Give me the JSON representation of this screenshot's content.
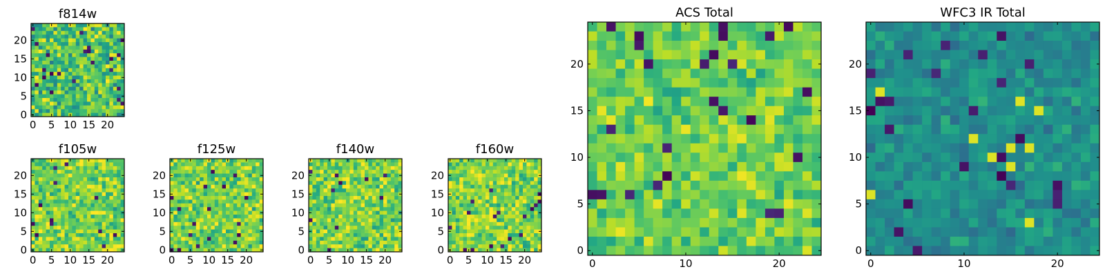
{
  "chart_data": [
    {
      "id": "f814w",
      "type": "heatmap",
      "title": "f814w",
      "colormap": "viridis",
      "grid_size": 25,
      "xlim": [
        0,
        24
      ],
      "ylim": [
        0,
        24
      ],
      "xticks": [
        0,
        5,
        10,
        15,
        20
      ],
      "yticks": [
        0,
        5,
        10,
        15,
        20
      ],
      "grid": false
    },
    {
      "id": "f105w",
      "type": "heatmap",
      "title": "f105w",
      "colormap": "viridis",
      "grid_size": 25,
      "xlim": [
        0,
        24
      ],
      "ylim": [
        0,
        24
      ],
      "xticks": [
        0,
        5,
        10,
        15,
        20
      ],
      "yticks": [
        0,
        5,
        10,
        15,
        20
      ],
      "grid": false
    },
    {
      "id": "f125w",
      "type": "heatmap",
      "title": "f125w",
      "colormap": "viridis",
      "grid_size": 25,
      "xlim": [
        0,
        24
      ],
      "ylim": [
        0,
        24
      ],
      "xticks": [
        0,
        5,
        10,
        15,
        20
      ],
      "yticks": [
        0,
        5,
        10,
        15,
        20
      ],
      "grid": false
    },
    {
      "id": "f140w",
      "type": "heatmap",
      "title": "f140w",
      "colormap": "viridis",
      "grid_size": 25,
      "xlim": [
        0,
        24
      ],
      "ylim": [
        0,
        24
      ],
      "xticks": [
        0,
        5,
        10,
        15,
        20
      ],
      "yticks": [
        0,
        5,
        10,
        15,
        20
      ],
      "grid": false
    },
    {
      "id": "f160w",
      "type": "heatmap",
      "title": "f160w",
      "colormap": "viridis",
      "grid_size": 25,
      "xlim": [
        0,
        24
      ],
      "ylim": [
        0,
        24
      ],
      "xticks": [
        0,
        5,
        10,
        15,
        20
      ],
      "yticks": [
        0,
        5,
        10,
        15,
        20
      ],
      "grid": false
    },
    {
      "id": "acs-total",
      "type": "heatmap",
      "title": "ACS Total",
      "colormap": "viridis",
      "grid_size": 25,
      "xlim": [
        0,
        24
      ],
      "ylim": [
        0,
        24
      ],
      "xticks": [
        0,
        10,
        20
      ],
      "yticks": [
        0,
        5,
        10,
        15,
        20
      ],
      "grid": false
    },
    {
      "id": "wfc3-ir-total",
      "type": "heatmap",
      "title": "WFC3 IR Total",
      "colormap": "viridis",
      "grid_size": 25,
      "xlim": [
        0,
        24
      ],
      "ylim": [
        0,
        24
      ],
      "xticks": [
        0,
        10,
        20
      ],
      "yticks": [
        0,
        5,
        10,
        15,
        20
      ],
      "grid": false
    }
  ]
}
